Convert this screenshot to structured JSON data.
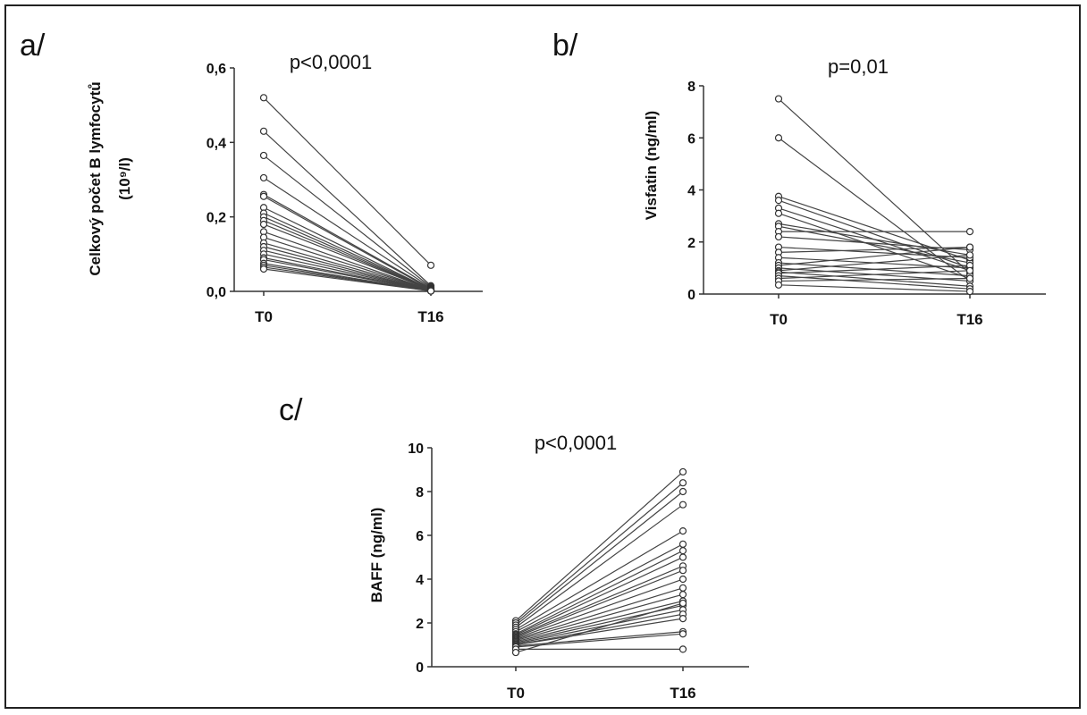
{
  "chart_data": [
    {
      "panel": "a/",
      "type": "line",
      "annotation": "p<0,0001",
      "xlabel": "",
      "ylabel": "Celkový počet B lymfocytů",
      "ylabel_unit": "(10⁹/l)",
      "categories": [
        "T0",
        "T16"
      ],
      "ylim": [
        0,
        0.6
      ],
      "yticks": [
        "0,0",
        "0,2",
        "0,4",
        "0,6"
      ],
      "series": [
        {
          "values": [
            0.52,
            0.07
          ]
        },
        {
          "values": [
            0.43,
            0.015
          ]
        },
        {
          "values": [
            0.365,
            0.012
          ]
        },
        {
          "values": [
            0.305,
            0.01
          ]
        },
        {
          "values": [
            0.26,
            0.008
          ]
        },
        {
          "values": [
            0.255,
            0.006
          ]
        },
        {
          "values": [
            0.225,
            0.005
          ]
        },
        {
          "values": [
            0.21,
            0.005
          ]
        },
        {
          "values": [
            0.2,
            0.004
          ]
        },
        {
          "values": [
            0.19,
            0.004
          ]
        },
        {
          "values": [
            0.18,
            0.004
          ]
        },
        {
          "values": [
            0.16,
            0.003
          ]
        },
        {
          "values": [
            0.145,
            0.003
          ]
        },
        {
          "values": [
            0.13,
            0.003
          ]
        },
        {
          "values": [
            0.12,
            0.002
          ]
        },
        {
          "values": [
            0.11,
            0.002
          ]
        },
        {
          "values": [
            0.1,
            0.002
          ]
        },
        {
          "values": [
            0.09,
            0.002
          ]
        },
        {
          "values": [
            0.085,
            0.001
          ]
        },
        {
          "values": [
            0.075,
            0.001
          ]
        },
        {
          "values": [
            0.07,
            0.001
          ]
        },
        {
          "values": [
            0.065,
            0.001
          ]
        },
        {
          "values": [
            0.06,
            0.001
          ]
        }
      ]
    },
    {
      "panel": "b/",
      "type": "line",
      "annotation": "p=0,01",
      "xlabel": "",
      "ylabel": "Visfatin (ng/ml)",
      "categories": [
        "T0",
        "T16"
      ],
      "ylim": [
        0,
        8
      ],
      "yticks": [
        "0",
        "2",
        "4",
        "6",
        "8"
      ],
      "series": [
        {
          "values": [
            7.5,
            0.8
          ]
        },
        {
          "values": [
            6.0,
            0.5
          ]
        },
        {
          "values": [
            3.75,
            1.3
          ]
        },
        {
          "values": [
            3.6,
            1.0
          ]
        },
        {
          "values": [
            3.3,
            0.9
          ]
        },
        {
          "values": [
            3.1,
            0.6
          ]
        },
        {
          "values": [
            2.7,
            1.5
          ]
        },
        {
          "values": [
            2.6,
            1.2
          ]
        },
        {
          "values": [
            2.4,
            2.4
          ]
        },
        {
          "values": [
            2.2,
            1.7
          ]
        },
        {
          "values": [
            1.8,
            1.4
          ]
        },
        {
          "values": [
            1.6,
            1.8
          ]
        },
        {
          "values": [
            1.4,
            1.0
          ]
        },
        {
          "values": [
            1.2,
            0.7
          ]
        },
        {
          "values": [
            1.1,
            1.8
          ]
        },
        {
          "values": [
            1.0,
            0.5
          ]
        },
        {
          "values": [
            0.9,
            1.5
          ]
        },
        {
          "values": [
            0.85,
            0.3
          ]
        },
        {
          "values": [
            0.8,
            1.1
          ]
        },
        {
          "values": [
            0.7,
            0.2
          ]
        },
        {
          "values": [
            0.6,
            0.9
          ]
        },
        {
          "values": [
            0.5,
            0.6
          ]
        },
        {
          "values": [
            0.35,
            0.1
          ]
        }
      ]
    },
    {
      "panel": "c/",
      "type": "line",
      "annotation": "p<0,0001",
      "xlabel": "",
      "ylabel": "BAFF (ng/ml)",
      "categories": [
        "T0",
        "T16"
      ],
      "ylim": [
        0,
        10
      ],
      "yticks": [
        "0",
        "2",
        "4",
        "6",
        "8",
        "10"
      ],
      "series": [
        {
          "values": [
            2.1,
            8.9
          ]
        },
        {
          "values": [
            2.0,
            8.4
          ]
        },
        {
          "values": [
            1.9,
            8.0
          ]
        },
        {
          "values": [
            1.8,
            7.4
          ]
        },
        {
          "values": [
            1.7,
            6.2
          ]
        },
        {
          "values": [
            1.6,
            5.6
          ]
        },
        {
          "values": [
            1.5,
            5.3
          ]
        },
        {
          "values": [
            1.45,
            5.0
          ]
        },
        {
          "values": [
            1.4,
            4.6
          ]
        },
        {
          "values": [
            1.35,
            4.4
          ]
        },
        {
          "values": [
            1.3,
            4.0
          ]
        },
        {
          "values": [
            1.25,
            3.6
          ]
        },
        {
          "values": [
            1.2,
            3.3
          ]
        },
        {
          "values": [
            1.15,
            3.0
          ]
        },
        {
          "values": [
            1.1,
            2.8
          ]
        },
        {
          "values": [
            1.05,
            2.6
          ]
        },
        {
          "values": [
            1.0,
            2.4
          ]
        },
        {
          "values": [
            1.0,
            2.2
          ]
        },
        {
          "values": [
            0.95,
            1.6
          ]
        },
        {
          "values": [
            0.9,
            1.5
          ]
        },
        {
          "values": [
            0.8,
            0.8
          ]
        },
        {
          "values": [
            0.65,
            2.9
          ]
        }
      ]
    }
  ]
}
